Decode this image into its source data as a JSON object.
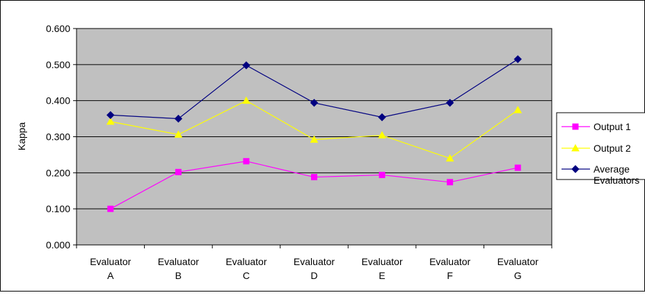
{
  "colors": {
    "plot_background": "#c0c0c0",
    "frame": "#000000",
    "gridline": "#000000",
    "output1": "#ff00ff",
    "output2": "#ffff00",
    "average": "#000080"
  },
  "chart_data": {
    "type": "line",
    "title": "",
    "xlabel": "",
    "ylabel": "Kappa",
    "categories": [
      [
        "Evaluator",
        "A"
      ],
      [
        "Evaluator",
        "B"
      ],
      [
        "Evaluator",
        "C"
      ],
      [
        "Evaluator",
        "D"
      ],
      [
        "Evaluator",
        "E"
      ],
      [
        "Evaluator",
        "F"
      ],
      [
        "Evaluator",
        "G"
      ]
    ],
    "ylim": [
      0,
      0.6
    ],
    "yticks": [
      "0.000",
      "0.100",
      "0.200",
      "0.300",
      "0.400",
      "0.500",
      "0.600"
    ],
    "grid": true,
    "legend_position": "right",
    "series": [
      {
        "name": "Output 1",
        "legend_lines": [
          "Output 1"
        ],
        "marker": "square",
        "color_key": "output1",
        "values": [
          0.1,
          0.202,
          0.232,
          0.188,
          0.194,
          0.174,
          0.214
        ]
      },
      {
        "name": "Output 2",
        "legend_lines": [
          "Output 2"
        ],
        "marker": "triangle",
        "color_key": "output2",
        "values": [
          0.342,
          0.306,
          0.4,
          0.292,
          0.304,
          0.24,
          0.374
        ]
      },
      {
        "name": "Average Evaluators",
        "legend_lines": [
          "Average",
          "Evaluators"
        ],
        "marker": "diamond",
        "color_key": "average",
        "values": [
          0.36,
          0.35,
          0.498,
          0.394,
          0.354,
          0.394,
          0.515
        ]
      }
    ]
  }
}
